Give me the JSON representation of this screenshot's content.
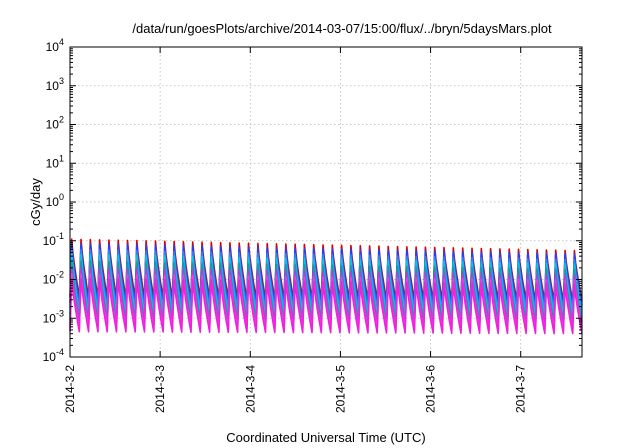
{
  "chart_data": {
    "type": "line",
    "title": "/data/run/goesPlots/archive/2014-03-07/15:00/flux/../bryn/5daysMars.plot",
    "xlabel": "Coordinated Universal Time (UTC)",
    "ylabel": "cGy/day",
    "yscale": "log",
    "ylim": [
      0.0001,
      10000
    ],
    "y_ticks": [
      {
        "base": "10",
        "exp": "-4"
      },
      {
        "base": "10",
        "exp": "-3"
      },
      {
        "base": "10",
        "exp": "-2"
      },
      {
        "base": "10",
        "exp": "-1"
      },
      {
        "base": "10",
        "exp": "0"
      },
      {
        "base": "10",
        "exp": "1"
      },
      {
        "base": "10",
        "exp": "2"
      },
      {
        "base": "10",
        "exp": "3"
      },
      {
        "base": "10",
        "exp": "4"
      }
    ],
    "x_ticks": [
      "2014-3-2",
      "2014-3-3",
      "2014-3-4",
      "2014-3-5",
      "2014-3-6",
      "2014-3-7"
    ],
    "xlim_days": [
      0,
      5.68
    ],
    "grid": true,
    "legend": "none",
    "oscillation": {
      "cycles_per_day": 9.6,
      "pattern": "sawtooth"
    },
    "series": [
      {
        "color": "#dd0000",
        "peak_start": 0.11,
        "peak_end": 0.055,
        "trough_start": 0.0035,
        "trough_end": 0.0028
      },
      {
        "color": "#1a44ff",
        "peak_start": 0.085,
        "peak_end": 0.045,
        "trough_start": 0.0025,
        "trough_end": 0.0022
      },
      {
        "color": "#2288ff",
        "peak_start": 0.06,
        "peak_end": 0.032,
        "trough_start": 0.0018,
        "trough_end": 0.0016
      },
      {
        "color": "#00c8e8",
        "peak_start": 0.045,
        "peak_end": 0.025,
        "trough_start": 0.0012,
        "trough_end": 0.0011
      },
      {
        "color": "#1f9a9a",
        "peak_start": 0.03,
        "peak_end": 0.018,
        "trough_start": 0.0009,
        "trough_end": 0.0008
      },
      {
        "color": "#b040d8",
        "peak_start": 0.02,
        "peak_end": 0.013,
        "trough_start": 0.0007,
        "trough_end": 0.0006
      },
      {
        "color": "#ff33ee",
        "peak_start": 0.014,
        "peak_end": 0.0095,
        "trough_start": 0.00055,
        "trough_end": 0.00048
      },
      {
        "color": "#ee22dd",
        "peak_start": 0.0105,
        "peak_end": 0.0075,
        "trough_start": 0.00045,
        "trough_end": 0.0004
      }
    ]
  }
}
